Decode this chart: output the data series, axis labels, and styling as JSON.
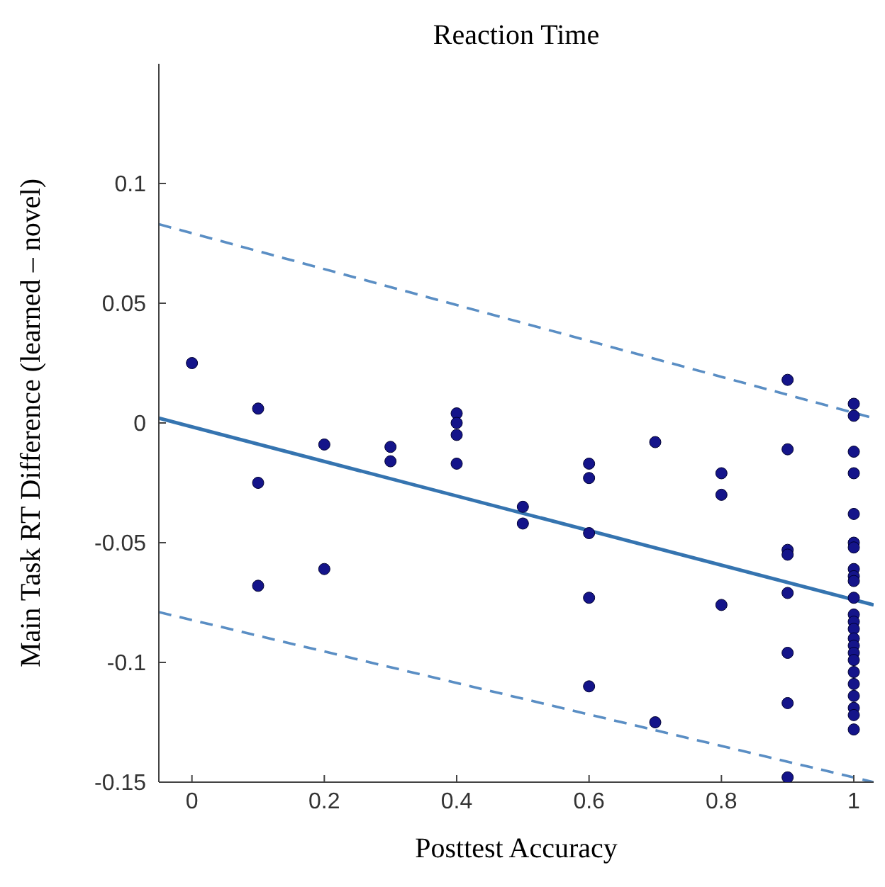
{
  "chart_data": {
    "type": "scatter",
    "title": "Reaction Time",
    "xlabel": "Posttest Accuracy",
    "ylabel": "Main Task RT Difference (learned – novel)",
    "xlim": [
      -0.05,
      1.03
    ],
    "xticks": [
      0,
      0.2,
      0.4,
      0.6,
      0.8,
      1
    ],
    "ylim": [
      -0.15,
      0.15
    ],
    "yticks": [
      -0.15,
      -0.1,
      -0.05,
      0,
      0.05,
      0.1
    ],
    "grid": false,
    "legend": false,
    "series": [
      {
        "color": "#14148a",
        "marker": "circle",
        "x": [
          0,
          0.1,
          0.1,
          0.1,
          0.2,
          0.2,
          0.3,
          0.3,
          0.4,
          0.4,
          0.4,
          0.4,
          0.5,
          0.5,
          0.6,
          0.6,
          0.6,
          0.6,
          0.6,
          0.7,
          0.7,
          0.8,
          0.8,
          0.8,
          0.9,
          0.9,
          0.9,
          0.9,
          0.9,
          0.9,
          0.9,
          0.9,
          1,
          1,
          1,
          1,
          1,
          1,
          1,
          1,
          1,
          1,
          1,
          1,
          1,
          1,
          1,
          1,
          1,
          1,
          1,
          1,
          1,
          1,
          1,
          1
        ],
        "values": [
          0.025,
          0.006,
          -0.025,
          -0.068,
          -0.009,
          -0.061,
          -0.01,
          -0.016,
          0.004,
          0,
          -0.005,
          -0.017,
          -0.035,
          -0.042,
          -0.017,
          -0.023,
          -0.046,
          -0.073,
          -0.11,
          -0.008,
          -0.125,
          -0.021,
          -0.03,
          -0.076,
          0.018,
          -0.011,
          -0.053,
          -0.055,
          -0.071,
          -0.096,
          -0.117,
          -0.148,
          0.008,
          0.003,
          -0.012,
          -0.021,
          -0.038,
          -0.05,
          -0.052,
          -0.061,
          -0.064,
          -0.066,
          -0.073,
          -0.08,
          -0.083,
          -0.086,
          -0.09,
          -0.093,
          -0.096,
          -0.099,
          -0.104,
          -0.109,
          -0.114,
          -0.119,
          -0.122,
          -0.128
        ]
      },
      {
        "type": "line",
        "color": "#3574b0",
        "marker": "none",
        "line_style": "solid",
        "x": [
          -0.05,
          1.03
        ],
        "values": [
          0.002,
          -0.076
        ]
      },
      {
        "type": "line",
        "color": "#5a8ec4",
        "marker": "none",
        "line_style": "dashed",
        "x": [
          -0.05,
          1.03
        ],
        "values": [
          0.083,
          0.002
        ]
      },
      {
        "type": "line",
        "color": "#5a8ec4",
        "marker": "none",
        "line_style": "dashed",
        "x": [
          -0.05,
          1.03
        ],
        "values": [
          -0.079,
          -0.15
        ]
      }
    ]
  }
}
